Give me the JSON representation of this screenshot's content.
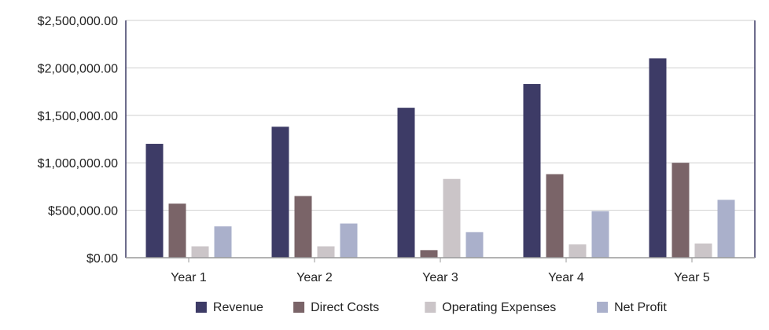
{
  "chart_data": {
    "type": "bar",
    "title": "",
    "xlabel": "",
    "ylabel": "",
    "categories": [
      "Year 1",
      "Year 2",
      "Year 3",
      "Year 4",
      "Year 5"
    ],
    "ylim": [
      0,
      2500000
    ],
    "yticks": [
      0,
      500000,
      1000000,
      1500000,
      2000000,
      2500000
    ],
    "ytick_labels": [
      "$0.00",
      "$500,000.00",
      "$1,000,000.00",
      "$1,500,000.00",
      "$2,000,000.00",
      "$2,500,000.00"
    ],
    "grid": true,
    "legend_position": "bottom",
    "series": [
      {
        "name": "Revenue",
        "color": "#3d3b66",
        "values": [
          1200000,
          1380000,
          1580000,
          1830000,
          2100000
        ]
      },
      {
        "name": "Direct Costs",
        "color": "#7a6468",
        "values": [
          570000,
          650000,
          80000,
          880000,
          1000000
        ]
      },
      {
        "name": "Operating Expenses",
        "color": "#cbc5c8",
        "values": [
          120000,
          120000,
          830000,
          140000,
          150000
        ]
      },
      {
        "name": "Net Profit",
        "color": "#aab0cb",
        "values": [
          330000,
          360000,
          270000,
          490000,
          610000
        ]
      }
    ]
  }
}
